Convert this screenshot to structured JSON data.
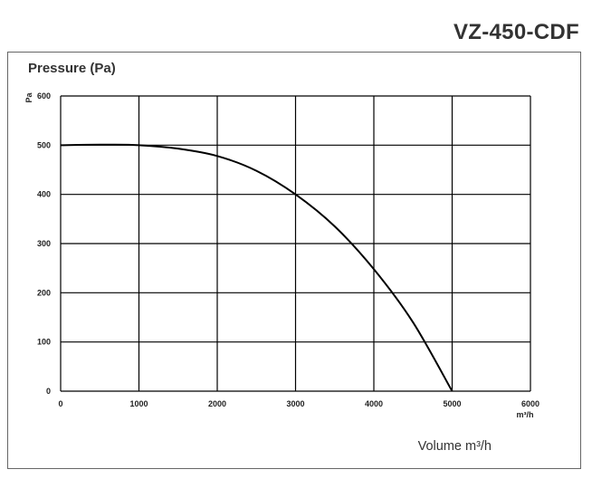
{
  "model": "VZ-450-CDF",
  "chart_data": {
    "type": "line",
    "title": "Pressure (Pa)",
    "ylabel": "Pa",
    "xlabel": "Volume m³/h",
    "x_unit_label": "m³/h",
    "xlim": [
      0,
      6000
    ],
    "ylim": [
      0,
      600
    ],
    "xticks": [
      0,
      1000,
      2000,
      3000,
      4000,
      5000,
      6000
    ],
    "yticks": [
      0,
      100,
      200,
      300,
      400,
      500,
      600
    ],
    "grid": true,
    "series": [
      {
        "x": [
          0,
          500,
          1000,
          1500,
          2000,
          2500,
          3000,
          3500,
          4000,
          4500,
          5000
        ],
        "y": [
          500,
          501,
          500,
          493,
          478,
          448,
          400,
          335,
          248,
          140,
          0
        ]
      }
    ],
    "colors": {
      "line": "#000000",
      "grid": "#000000",
      "frame": "#666666"
    }
  }
}
